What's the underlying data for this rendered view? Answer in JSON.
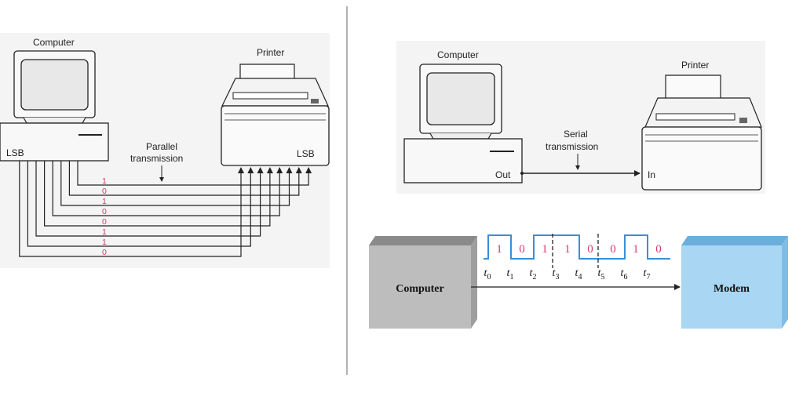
{
  "parallel": {
    "computer_label": "Computer",
    "printer_label": "Printer",
    "computer_lsb": "LSB",
    "printer_lsb": "LSB",
    "transmission_label_1": "Parallel",
    "transmission_label_2": "transmission",
    "bits": [
      "1",
      "0",
      "1",
      "0",
      "0",
      "1",
      "1",
      "0"
    ]
  },
  "serial": {
    "computer_label": "Computer",
    "printer_label": "Printer",
    "out_label": "Out",
    "in_label": "In",
    "transmission_label_1": "Serial",
    "transmission_label_2": "transmission"
  },
  "modem_diagram": {
    "computer_box": "Computer",
    "modem_box": "Modem",
    "bits": [
      "1",
      "0",
      "1",
      "1",
      "0",
      "0",
      "1",
      "0"
    ],
    "time_labels": [
      "0",
      "1",
      "2",
      "3",
      "4",
      "5",
      "6",
      "7"
    ],
    "time_symbol": "t",
    "colors": {
      "computer": "#bdbdbd",
      "modem": "#a9d6f3",
      "signal": "#3b8ed8",
      "bit": "#d63a6a"
    }
  }
}
